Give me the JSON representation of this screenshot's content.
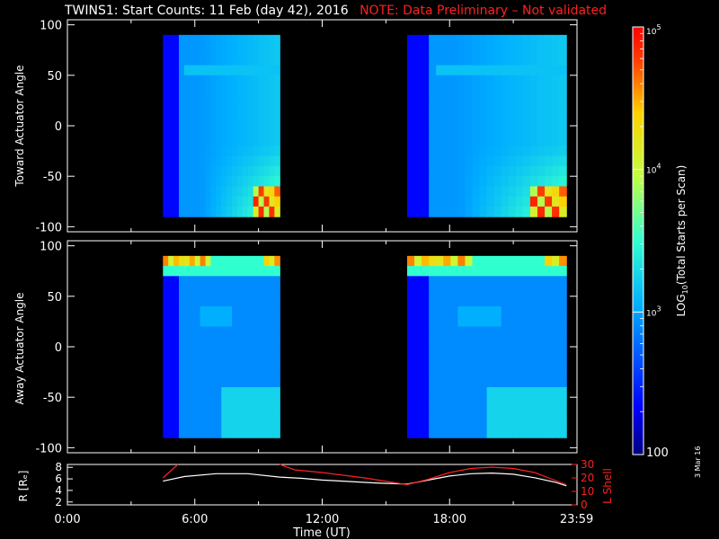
{
  "title": {
    "main": "TWINS1: Start Counts: 11 Feb (day  42), 2016",
    "note": "NOTE: Data Preliminary – Not validated"
  },
  "side_date": "3 Mar 16",
  "colors": {
    "background": "#000000",
    "axis": "#ffffff",
    "note": "#ff2020",
    "r_line": "#ffffff",
    "lshell_line": "#ff2020"
  },
  "chart_data": [
    {
      "type": "heatmap",
      "ylabel": "Toward Actuator Angle",
      "ylim": [
        -105,
        105
      ],
      "yticks": [
        "100",
        "50",
        "0",
        "-50",
        "-100"
      ],
      "xlim_hours": [
        0,
        24
      ],
      "data_intervals_hours": [
        [
          4.5,
          10.0
        ],
        [
          16.0,
          23.5
        ]
      ],
      "angle_range": [
        -90,
        90
      ],
      "log_counts_min": 2,
      "log_counts_max": 5,
      "features": "Low counts (~10^2.5) near early part of each interval, moderate (~10^3) through mid-angles, high (~10^4.5–10^5) at lowest angles near end of each interval"
    },
    {
      "type": "heatmap",
      "ylabel": "Away Actuator Angle",
      "ylim": [
        -105,
        105
      ],
      "yticks": [
        "100",
        "50",
        "0",
        "-50",
        "-100"
      ],
      "xlim_hours": [
        0,
        24
      ],
      "data_intervals_hours": [
        [
          4.5,
          10.0
        ],
        [
          16.0,
          23.5
        ]
      ],
      "angle_range": [
        -90,
        90
      ],
      "log_counts_min": 2,
      "log_counts_max": 5,
      "features": "Low counts at start of intervals, high counts (~10^4.5) at top angles (~90) near start and end, moderate elsewhere"
    },
    {
      "type": "line",
      "ylabel_left": "R [Rₑ]",
      "ylabel_right": "L Shell",
      "y_left_ticks": [
        "8",
        "6",
        "4",
        "2"
      ],
      "y_left_lim": [
        1.5,
        8.5
      ],
      "y_right_ticks": [
        "30",
        "20",
        "10",
        "0"
      ],
      "y_right_lim": [
        0,
        30
      ],
      "xlabel": "Time (UT)",
      "x_ticks_hours": [
        0,
        6,
        12,
        18,
        23.983
      ],
      "x_tick_labels": [
        "0:00",
        "6:00",
        "12:00",
        "18:00",
        "23:59"
      ],
      "series": [
        {
          "axis": "left",
          "x": [
            4.5,
            5.5,
            7,
            8.5,
            10,
            11,
            12,
            13,
            14.5,
            16,
            17,
            18,
            19,
            20,
            21,
            22,
            23,
            23.5
          ],
          "y": [
            5.6,
            6.4,
            6.9,
            6.9,
            6.3,
            6.1,
            5.8,
            5.6,
            5.3,
            5.1,
            5.8,
            6.5,
            6.9,
            7.0,
            6.8,
            6.2,
            5.4,
            4.8
          ]
        },
        {
          "axis": "right",
          "segments": [
            {
              "x": [
                4.5,
                5.2
              ],
              "y": [
                20,
                30
              ]
            },
            {
              "x": [
                10,
                10.7,
                12,
                14,
                16,
                17,
                18,
                19,
                20,
                21,
                22,
                23,
                23.5
              ],
              "y": [
                30,
                26,
                24,
                20,
                15,
                19,
                24,
                27,
                28,
                27,
                24,
                18,
                15
              ]
            }
          ]
        }
      ]
    }
  ],
  "colorbar": {
    "label": "LOG10(Total Starts per Scan)",
    "label_main": "LOG",
    "label_sub": "10",
    "label_rest": "(Total Starts per Scan)",
    "tick_labels": [
      "10^5",
      "10^4",
      "10^3",
      "100"
    ],
    "ticks": [
      {
        "text": "10",
        "sup": "5",
        "log": 5
      },
      {
        "text": "10",
        "sup": "4",
        "log": 4
      },
      {
        "text": "10",
        "sup": "3",
        "log": 3
      },
      {
        "text": "100",
        "sup": "",
        "log": 2
      }
    ],
    "range_log": [
      2,
      5
    ]
  }
}
